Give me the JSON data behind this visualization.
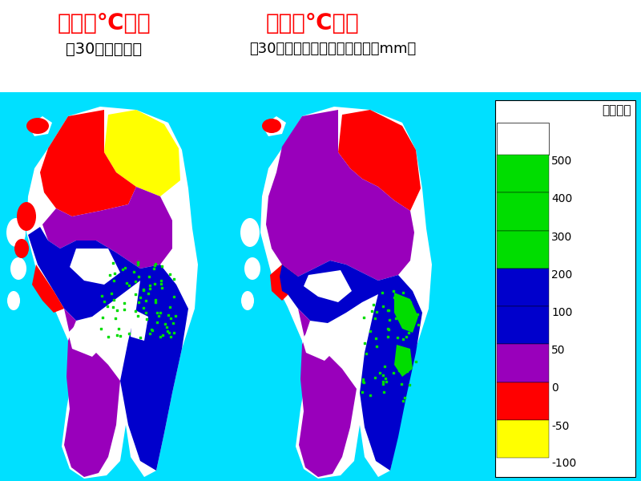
{
  "title_left": "気温２℃上昇",
  "title_right": "気温２℃上昇",
  "subtitle_left": "（30日早期化）",
  "subtitle_right": "（30日晩期化）水資源賦存量（mm）",
  "title_color": "#ff0000",
  "subtitle_color": "#000000",
  "background_color": "#00e0ff",
  "title_fontsize": 20,
  "subtitle_fontsize": 14,
  "legend_label": "水田なし",
  "legend_value_labels": [
    "500",
    "400",
    "300",
    "200",
    "100",
    "50",
    "0",
    "-50",
    "-100"
  ],
  "legend_colors_list": [
    "#00dd00",
    "#00dd00",
    "#00dd00",
    "#0000cc",
    "#0000cc",
    "#9900bb",
    "#ff0000",
    "#ffff00"
  ],
  "white_box_label": "水田なし",
  "map_border_color": "#ffffff",
  "cyan_color": "#00e0ff",
  "green_color": "#00dd00",
  "blue_color": "#0000cc",
  "purple_color": "#9900bb",
  "red_color": "#ff0000",
  "yellow_color": "#ffff00",
  "white_color": "#ffffff"
}
